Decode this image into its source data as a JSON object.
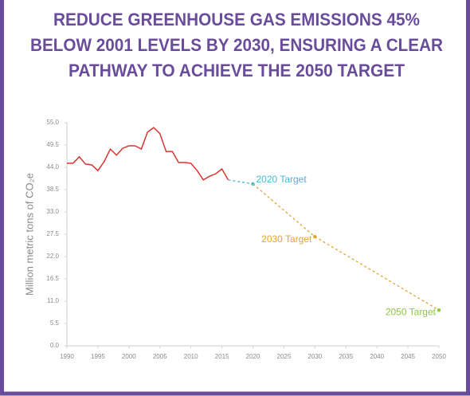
{
  "chart_data": {
    "type": "line",
    "title": [
      "REDUCE GREENHOUSE GAS EMISSIONS 45%",
      "BELOW 2001 LEVELS BY 2030, ENSURING A CLEAR",
      "PATHWAY TO ACHIEVE THE 2050 TARGET"
    ],
    "ylabel": "Million metric tons of CO₂e",
    "x": [
      1990,
      1991,
      1992,
      1993,
      1994,
      1995,
      1996,
      1997,
      1998,
      1999,
      2000,
      2001,
      2002,
      2003,
      2004,
      2005,
      2006,
      2007,
      2008,
      2009,
      2010,
      2011,
      2012,
      2013,
      2014,
      2015,
      2016
    ],
    "series": [
      {
        "color": "#d9332e",
        "values": [
          45.0,
          45.0,
          46.6,
          44.8,
          44.6,
          43.2,
          45.4,
          48.5,
          47.0,
          48.7,
          49.3,
          49.3,
          48.5,
          52.7,
          53.8,
          52.3,
          47.9,
          47.9,
          45.2,
          45.2,
          45.0,
          43.2,
          40.9,
          41.8,
          42.4,
          43.6,
          40.9
        ]
      }
    ],
    "targets": [
      {
        "label": "2020 Target",
        "x": 2020,
        "value": 39.9,
        "color": "#45b6d6"
      },
      {
        "label": "2030 Target",
        "x": 2030,
        "value": 26.9,
        "color": "#e3a331"
      },
      {
        "label": "2050 Target",
        "x": 2050,
        "value": 8.8,
        "color": "#8dc63f"
      }
    ],
    "projection_colors": [
      "#45b6d6",
      "#e3a331",
      "#e3a331"
    ],
    "xlim": [
      1990,
      2050
    ],
    "xticks": [
      1990,
      1995,
      2000,
      2005,
      2010,
      2015,
      2020,
      2025,
      2030,
      2035,
      2040,
      2045,
      2050
    ],
    "ylim": [
      0,
      55
    ],
    "yticks": [
      {
        "value": 0,
        "label": "0.0"
      },
      5.5,
      {
        "value": 11,
        "label": "11.0"
      },
      16.5,
      {
        "value": 22,
        "label": "22.0"
      },
      27.5,
      {
        "value": 33,
        "label": "33.0"
      },
      38.5,
      {
        "value": 44,
        "label": "44.0"
      },
      49.5,
      {
        "value": 55,
        "label": "55.0"
      }
    ]
  }
}
